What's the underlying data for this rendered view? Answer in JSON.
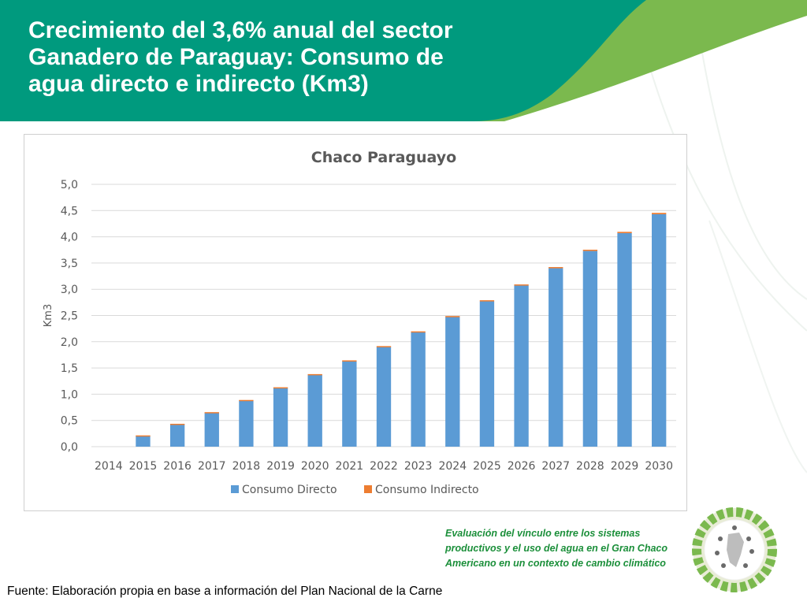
{
  "slide": {
    "title": "Crecimiento del 3,6% anual del sector Ganadero de Paraguay: Consumo de agua directo e indirecto (Km3)",
    "caption": "Evaluación del vínculo entre los sistemas productivos y el uso del agua en el Gran Chaco Americano en un contexto de cambio climático",
    "source": "Fuente: Elaboración propia en base a información del Plan Nacional de la Carne",
    "colors": {
      "header_green": "#009a7e",
      "accent_green": "#7bb94e",
      "caption_green": "#1b8f3a"
    }
  },
  "chart_data": {
    "type": "bar",
    "stacked": true,
    "title": "Chaco Paraguayo",
    "xlabel": "",
    "ylabel": "Km3",
    "ylim": [
      0,
      5
    ],
    "ytick_values": [
      0,
      0.5,
      1,
      1.5,
      2,
      2.5,
      3,
      3.5,
      4,
      4.5,
      5
    ],
    "ytick_labels": [
      "0,0",
      "0,5",
      "1,0",
      "1,5",
      "2,0",
      "2,5",
      "3,0",
      "3,5",
      "4,0",
      "4,5",
      "5,0"
    ],
    "grid": true,
    "legend_position": "bottom",
    "categories": [
      "2014",
      "2015",
      "2016",
      "2017",
      "2018",
      "2019",
      "2020",
      "2021",
      "2022",
      "2023",
      "2024",
      "2025",
      "2026",
      "2027",
      "2028",
      "2029",
      "2030"
    ],
    "series": [
      {
        "name": "Consumo Directo",
        "color": "#5b9bd5",
        "values": [
          0,
          0.21,
          0.43,
          0.65,
          0.88,
          1.12,
          1.37,
          1.63,
          1.9,
          2.18,
          2.47,
          2.77,
          3.07,
          3.4,
          3.73,
          4.07,
          4.43
        ]
      },
      {
        "name": "Consumo Indirecto",
        "color": "#ed7d31",
        "values": [
          0,
          0.005,
          0.006,
          0.008,
          0.01,
          0.012,
          0.013,
          0.015,
          0.017,
          0.018,
          0.02,
          0.021,
          0.022,
          0.023,
          0.024,
          0.025,
          0.026
        ]
      }
    ]
  }
}
